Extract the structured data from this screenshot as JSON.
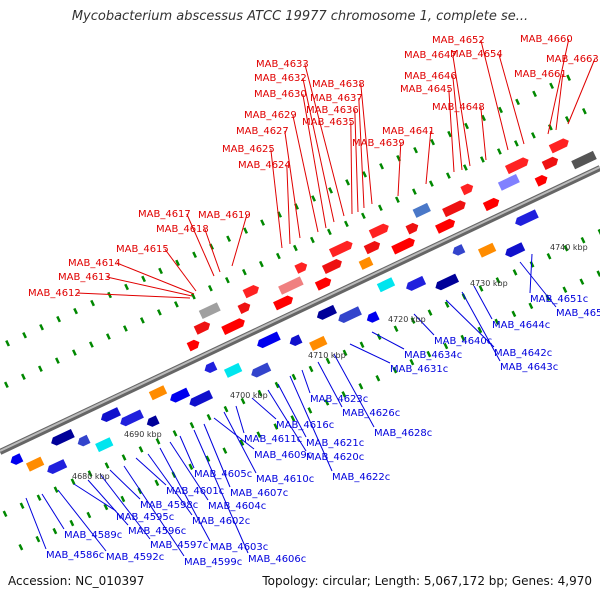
{
  "title": "Mycobacterium abscessus ATCC 19977 chromosome 1, complete se...",
  "footer": {
    "accession": "Accession: NC_010397",
    "summary": "Topology: circular; Length: 5,067,172 bp; Genes: 4,970"
  },
  "colors": {
    "forward_label": "#e00000",
    "reverse_label": "#0000dd",
    "forward_feature": "#ff0000",
    "reverse_feature": "#0000ee",
    "backbone": "#888888",
    "tick": "#008800"
  },
  "scale_labels": [
    "4680 kbp",
    "4690 kbp",
    "4700 kbp",
    "4710 kbp",
    "4720 kbp",
    "4730 kbp",
    "4740 kbp"
  ],
  "forward_genes": [
    "MAB_4612",
    "MAB_4613",
    "MAB_4614",
    "MAB_4615",
    "MAB_4617",
    "MAB_4618",
    "MAB_4619",
    "MAB_4624",
    "MAB_4625",
    "MAB_4627",
    "MAB_4629",
    "MAB_4630",
    "MAB_4632",
    "MAB_4633",
    "MAB_4635",
    "MAB_4636",
    "MAB_4637",
    "MAB_4638",
    "MAB_4639",
    "MAB_4641",
    "MAB_4645",
    "MAB_4646",
    "MAB_4647",
    "MAB_4648",
    "MAB_4652",
    "MAB_4654",
    "MAB_4660",
    "MAB_4661",
    "MAB_4663"
  ],
  "reverse_genes": [
    "MAB_4586c",
    "MAB_4589c",
    "MAB_4592c",
    "MAB_4595c",
    "MAB_4596c",
    "MAB_4597c",
    "MAB_4598c",
    "MAB_4599c",
    "MAB_4601c",
    "MAB_4602c",
    "MAB_4603c",
    "MAB_4604c",
    "MAB_4605c",
    "MAB_4606c",
    "MAB_4607c",
    "MAB_4609c",
    "MAB_4610c",
    "MAB_4611c",
    "MAB_4616c",
    "MAB_4620c",
    "MAB_4621c",
    "MAB_4622c",
    "MAB_4623c",
    "MAB_4626c",
    "MAB_4628c",
    "MAB_4631c",
    "MAB_4634c",
    "MAB_4640c",
    "MAB_4642c",
    "MAB_4643c",
    "MAB_4644c",
    "MAB_4650c",
    "MAB_4651c"
  ]
}
